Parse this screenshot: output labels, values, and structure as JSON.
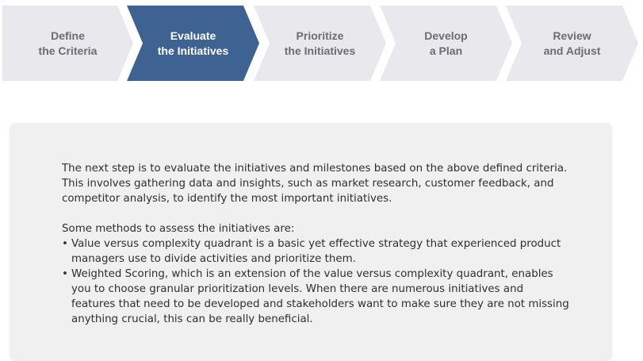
{
  "steps": [
    {
      "label": "Define\nthe Criteria",
      "active": false
    },
    {
      "label": "Evaluate\nthe Initiatives",
      "active": true
    },
    {
      "label": "Prioritize\nthe Initiatives",
      "active": false
    },
    {
      "label": "Develop\na Plan",
      "active": false
    },
    {
      "label": "Review\nand Adjust",
      "active": false
    }
  ],
  "colors": {
    "active_step": "#3e6291",
    "inactive_step": "#e8e8ed",
    "inactive_text": "#6b6d75",
    "panel_bg": "#f0f0f0"
  },
  "panel": {
    "intro": "The next step is to evaluate the initiatives and milestones based on the above defined criteria. This involves gathering data and insights, such as market research, customer feedback, and competitor analysis, to identify the most important initiatives.",
    "methods_heading": "Some methods to assess the initiatives are:",
    "bullet_glyph": "•",
    "methods": [
      "Value versus complexity quadrant is a basic yet effective strategy that experienced product managers use to divide activities and prioritize them.",
      "Weighted Scoring, which is an extension of the value versus complexity quadrant, enables you to choose granular prioritization levels. When there are numerous initiatives and features that need to be developed and stakeholders want to make sure they are not missing anything crucial, this can be really beneficial."
    ]
  }
}
